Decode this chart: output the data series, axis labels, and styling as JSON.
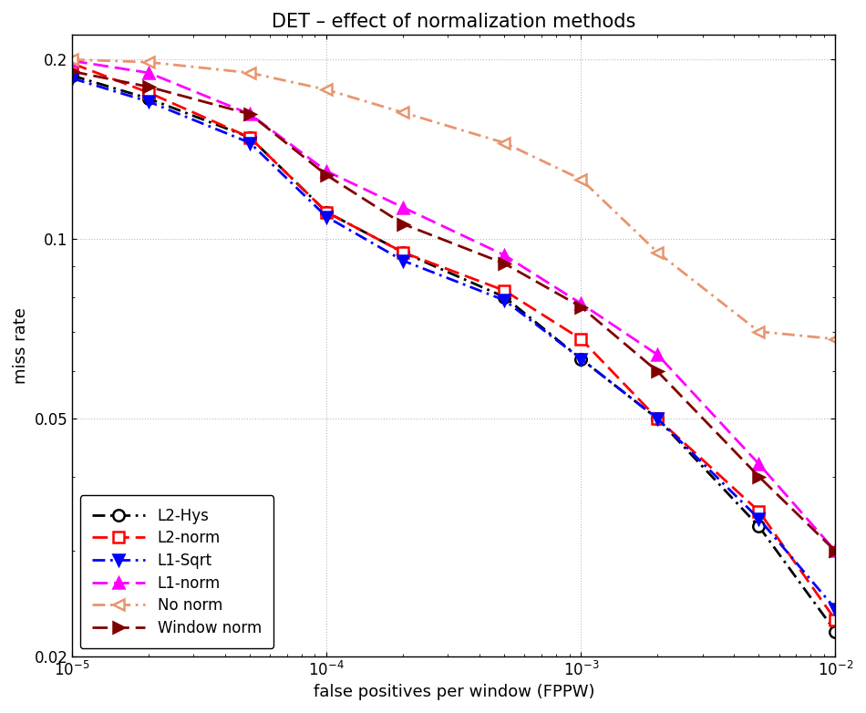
{
  "title": "DET – effect of normalization methods",
  "xlabel": "false positives per window (FPPW)",
  "ylabel": "miss rate",
  "xlim": [
    1e-05,
    0.01
  ],
  "ylim": [
    0.02,
    0.22
  ],
  "series": [
    {
      "label": "L2-Hys",
      "color": "#000000",
      "linestyle": "dashdot",
      "marker": "o",
      "markerfacecolor": "white",
      "markeredgecolor": "#000000",
      "x": [
        1e-05,
        2e-05,
        5e-05,
        0.0001,
        0.0002,
        0.0005,
        0.001,
        0.002,
        0.005,
        0.01
      ],
      "y": [
        0.188,
        0.172,
        0.148,
        0.111,
        0.095,
        0.08,
        0.063,
        0.05,
        0.033,
        0.022
      ]
    },
    {
      "label": "L2-norm",
      "color": "#ff0000",
      "linestyle": "dashed",
      "marker": "s",
      "markerfacecolor": "white",
      "markeredgecolor": "#ff0000",
      "x": [
        1e-05,
        2e-05,
        5e-05,
        0.0001,
        0.0002,
        0.0005,
        0.001,
        0.002,
        0.005,
        0.01
      ],
      "y": [
        0.197,
        0.176,
        0.148,
        0.111,
        0.095,
        0.082,
        0.068,
        0.05,
        0.035,
        0.023
      ]
    },
    {
      "label": "L1-Sqrt",
      "color": "#0000ff",
      "linestyle": "dashdot",
      "marker": "v",
      "markerfacecolor": "#0000ff",
      "markeredgecolor": "#0000ff",
      "x": [
        1e-05,
        2e-05,
        5e-05,
        0.0001,
        0.0002,
        0.0005,
        0.001,
        0.002,
        0.005,
        0.01
      ],
      "y": [
        0.186,
        0.17,
        0.145,
        0.109,
        0.092,
        0.079,
        0.063,
        0.05,
        0.034,
        0.024
      ]
    },
    {
      "label": "L1-norm",
      "color": "#ff00ff",
      "linestyle": "dashed",
      "marker": "^",
      "markerfacecolor": "#ff00ff",
      "markeredgecolor": "#ff00ff",
      "x": [
        1e-05,
        2e-05,
        5e-05,
        0.0001,
        0.0002,
        0.0005,
        0.001,
        0.002,
        0.005,
        0.01
      ],
      "y": [
        0.199,
        0.19,
        0.162,
        0.13,
        0.113,
        0.094,
        0.078,
        0.064,
        0.042,
        0.03
      ]
    },
    {
      "label": "No norm",
      "color": "#e8956d",
      "linestyle": "dashdot",
      "marker": "<",
      "markerfacecolor": "white",
      "markeredgecolor": "#e8956d",
      "x": [
        1e-05,
        2e-05,
        5e-05,
        0.0001,
        0.0002,
        0.0005,
        0.001,
        0.002,
        0.005,
        0.01
      ],
      "y": [
        0.2,
        0.198,
        0.19,
        0.178,
        0.163,
        0.145,
        0.126,
        0.095,
        0.07,
        0.068
      ]
    },
    {
      "label": "Window norm",
      "color": "#800000",
      "linestyle": "dashed",
      "marker": ">",
      "markerfacecolor": "#800000",
      "markeredgecolor": "#800000",
      "x": [
        1e-05,
        2e-05,
        5e-05,
        0.0001,
        0.0002,
        0.0005,
        0.001,
        0.002,
        0.005,
        0.01
      ],
      "y": [
        0.191,
        0.18,
        0.162,
        0.128,
        0.106,
        0.091,
        0.077,
        0.06,
        0.04,
        0.03
      ]
    }
  ],
  "grid_color": "#bbbbbb",
  "background_color": "#ffffff",
  "legend_loc": "lower left",
  "title_fontsize": 15,
  "label_fontsize": 13,
  "tick_fontsize": 12
}
